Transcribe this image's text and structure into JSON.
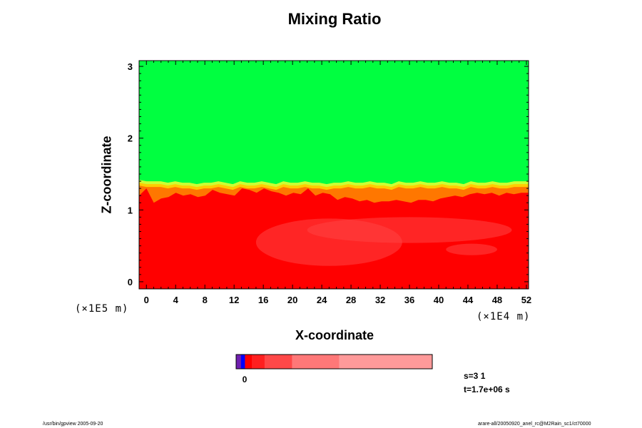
{
  "chart_data": {
    "type": "heatmap",
    "title": "Mixing Ratio",
    "xlabel": "X-coordinate",
    "ylabel": "Z-coordinate",
    "x_ticks": [
      "0",
      "4",
      "8",
      "12",
      "16",
      "20",
      "24",
      "28",
      "32",
      "36",
      "40",
      "44",
      "48",
      "52"
    ],
    "y_ticks": [
      "0",
      "1",
      "2",
      "3"
    ],
    "x_multiplier": "(×1E4 m)",
    "y_multiplier": "(×1E5 m)",
    "xlim": [
      -1,
      52.3
    ],
    "ylim": [
      -0.1,
      3.08
    ],
    "interface_z": [
      1.42,
      1.4,
      1.4,
      1.4,
      1.38,
      1.4,
      1.38,
      1.38,
      1.36,
      1.38,
      1.38,
      1.4,
      1.38,
      1.36,
      1.4,
      1.38,
      1.38,
      1.4,
      1.38,
      1.36,
      1.4,
      1.38,
      1.38,
      1.4,
      1.38,
      1.38,
      1.36,
      1.38,
      1.38,
      1.4,
      1.38,
      1.38,
      1.4,
      1.38,
      1.38,
      1.36,
      1.4,
      1.38,
      1.38,
      1.4,
      1.38,
      1.38,
      1.4,
      1.38,
      1.38,
      1.36,
      1.4,
      1.38,
      1.38,
      1.4,
      1.38,
      1.38,
      1.4,
      1.4,
      1.4
    ],
    "red_top_z": [
      1.2,
      1.3,
      1.1,
      1.16,
      1.18,
      1.24,
      1.2,
      1.22,
      1.18,
      1.2,
      1.28,
      1.24,
      1.22,
      1.2,
      1.3,
      1.28,
      1.24,
      1.3,
      1.26,
      1.24,
      1.2,
      1.24,
      1.22,
      1.3,
      1.2,
      1.24,
      1.22,
      1.14,
      1.18,
      1.16,
      1.12,
      1.14,
      1.1,
      1.12,
      1.12,
      1.14,
      1.12,
      1.1,
      1.14,
      1.14,
      1.12,
      1.16,
      1.18,
      1.2,
      1.18,
      1.22,
      1.24,
      1.22,
      1.24,
      1.2,
      1.24,
      1.22,
      1.24,
      1.24
    ],
    "colors": {
      "above": "#00ff40",
      "below": "#ff0000",
      "interface_light": "#ccff33",
      "interface_mid": "#ffcc00",
      "interface_orange": "#ff7700",
      "light_red": "#ff4444"
    },
    "colorbar": {
      "tick_label": "0",
      "segments": [
        {
          "color": "#7020b0",
          "fraction": 0.025
        },
        {
          "color": "#0000ff",
          "fraction": 0.02
        },
        {
          "color": "#ff0000",
          "fraction": 0.035
        },
        {
          "color": "#ff2020",
          "fraction": 0.065
        },
        {
          "color": "#ff4848",
          "fraction": 0.14
        },
        {
          "color": "#ff7878",
          "fraction": 0.24
        },
        {
          "color": "#ff9a9a",
          "fraction": 0.475
        }
      ]
    }
  },
  "info": {
    "step": "s=3 1",
    "time": "t=1.7e+06 s"
  },
  "footer": {
    "left": "/usr/bin/gpview 2005-09-20",
    "right": "arare-all/20050920_anel_rc@M2Rain_sc1/ct70000"
  }
}
